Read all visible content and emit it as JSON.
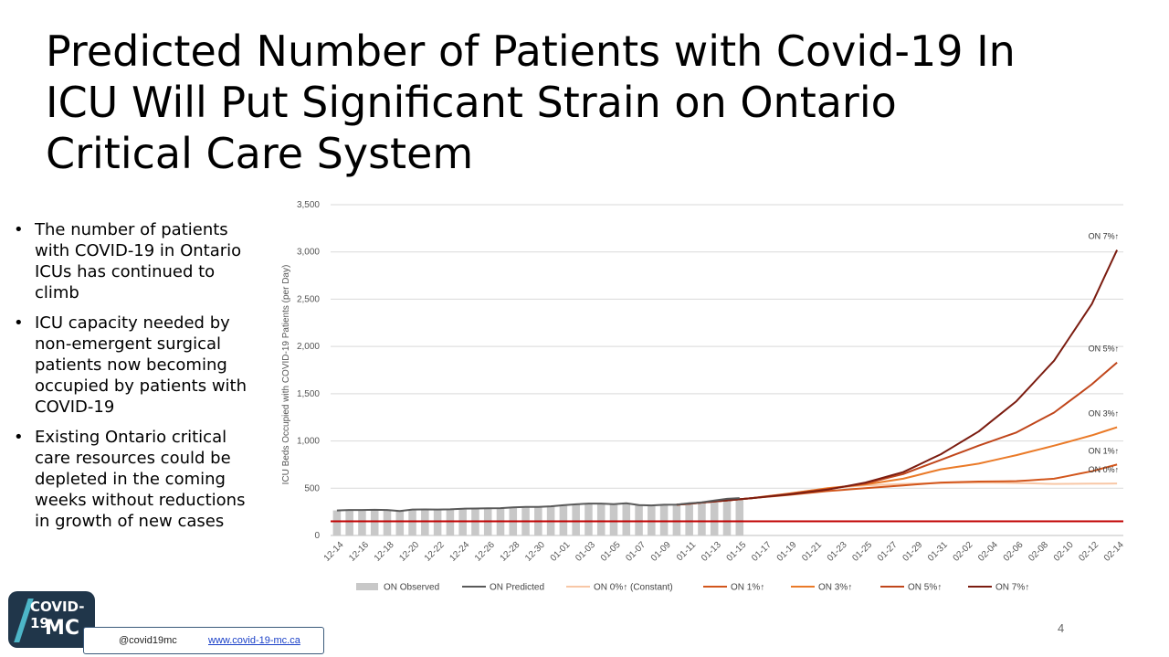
{
  "slide": {
    "title_lines": [
      "Predicted Number of Patients with Covid-19 In",
      "ICU Will Put Significant Strain on Ontario",
      "Critical Care System"
    ],
    "bullets": [
      "The number of patients with COVID-19 in Ontario ICUs has continued to climb",
      "ICU capacity needed by non-emergent surgical patients now becoming occupied by patients with COVID-19",
      "Existing Ontario critical care resources could be depleted in the coming weeks without reductions in growth of new cases"
    ],
    "page_number": "4"
  },
  "branding": {
    "logo_line1": "COVID-19",
    "logo_line2": "MC",
    "handle": "@covid19mc",
    "website": "www.covid-19-mc.ca"
  },
  "colors": {
    "observed": "#c8c8c8",
    "predicted": "#595959",
    "on0": "#f8c7a6",
    "on1": "#d2561c",
    "on3": "#ea7a28",
    "on5": "#c0461b",
    "on7": "#7b1c10",
    "capacity": "#c00000",
    "grid": "#d9d9d9"
  },
  "chart_data": {
    "type": "line",
    "title": "",
    "ylabel": "ICU Beds Occupied with COVID-19 Patients (per Day)",
    "xlabel": "",
    "ylim": [
      0,
      3500
    ],
    "yticks": [
      0,
      500,
      1000,
      1500,
      2000,
      2500,
      3000,
      3500
    ],
    "ytick_labels": [
      "0",
      "500",
      "1,000",
      "1,500",
      "2,000",
      "2,500",
      "3,000",
      "3,500"
    ],
    "x_tick_labels": [
      "12-14",
      "12-16",
      "12-18",
      "12-20",
      "12-22",
      "12-24",
      "12-26",
      "12-28",
      "12-30",
      "01-01",
      "01-03",
      "01-05",
      "01-07",
      "01-09",
      "01-11",
      "01-13",
      "01-15",
      "01-17",
      "01-19",
      "01-21",
      "01-23",
      "01-25",
      "01-27",
      "01-29",
      "01-31",
      "02-02",
      "02-04",
      "02-06",
      "02-08",
      "02-10",
      "02-12",
      "02-14"
    ],
    "n_days": 63,
    "grid": true,
    "legend_position": "bottom",
    "capacity_line": 150,
    "observed": {
      "name": "ON Observed",
      "values": [
        265,
        270,
        270,
        272,
        270,
        258,
        275,
        276,
        275,
        277,
        283,
        285,
        287,
        289,
        298,
        302,
        302,
        308,
        320,
        330,
        337,
        337,
        332,
        340,
        322,
        318,
        325,
        327,
        340,
        350,
        370,
        388,
        395
      ]
    },
    "predicted": {
      "name": "ON Predicted",
      "values": [
        265,
        270,
        270,
        272,
        270,
        258,
        275,
        276,
        275,
        277,
        283,
        285,
        287,
        289,
        298,
        302,
        302,
        308,
        320,
        330,
        337,
        337,
        332,
        340,
        322,
        318,
        325,
        327,
        340,
        350,
        370,
        388,
        395
      ]
    },
    "series": [
      {
        "name": "ON 0%↑ (Constant)",
        "label": "ON 0%↑",
        "points": [
          [
            27,
            325
          ],
          [
            30,
            360
          ],
          [
            33,
            395
          ],
          [
            36,
            445
          ],
          [
            39,
            500
          ],
          [
            42,
            530
          ],
          [
            45,
            545
          ],
          [
            48,
            555
          ],
          [
            51,
            560
          ],
          [
            54,
            555
          ],
          [
            57,
            545
          ],
          [
            60,
            548
          ],
          [
            62,
            550
          ]
        ]
      },
      {
        "name": "ON 1%↑",
        "label": "ON 1%↑",
        "points": [
          [
            27,
            325
          ],
          [
            30,
            360
          ],
          [
            33,
            395
          ],
          [
            36,
            430
          ],
          [
            39,
            470
          ],
          [
            42,
            500
          ],
          [
            45,
            530
          ],
          [
            48,
            560
          ],
          [
            51,
            570
          ],
          [
            54,
            575
          ],
          [
            57,
            600
          ],
          [
            60,
            680
          ],
          [
            62,
            750
          ]
        ]
      },
      {
        "name": "ON 3%↑",
        "label": "ON 3%↑",
        "points": [
          [
            27,
            325
          ],
          [
            30,
            360
          ],
          [
            33,
            395
          ],
          [
            36,
            445
          ],
          [
            39,
            500
          ],
          [
            42,
            540
          ],
          [
            45,
            600
          ],
          [
            48,
            700
          ],
          [
            51,
            760
          ],
          [
            54,
            850
          ],
          [
            57,
            950
          ],
          [
            60,
            1060
          ],
          [
            62,
            1145
          ]
        ]
      },
      {
        "name": "ON 5%↑",
        "label": "ON 5%↑",
        "points": [
          [
            27,
            325
          ],
          [
            30,
            360
          ],
          [
            33,
            395
          ],
          [
            36,
            440
          ],
          [
            39,
            490
          ],
          [
            42,
            550
          ],
          [
            45,
            650
          ],
          [
            48,
            800
          ],
          [
            51,
            950
          ],
          [
            54,
            1090
          ],
          [
            57,
            1300
          ],
          [
            60,
            1600
          ],
          [
            62,
            1830
          ]
        ]
      },
      {
        "name": "ON 7%↑",
        "label": "ON 7%↑",
        "points": [
          [
            27,
            325
          ],
          [
            30,
            360
          ],
          [
            33,
            395
          ],
          [
            36,
            435
          ],
          [
            39,
            485
          ],
          [
            42,
            560
          ],
          [
            45,
            670
          ],
          [
            48,
            860
          ],
          [
            51,
            1100
          ],
          [
            54,
            1420
          ],
          [
            57,
            1850
          ],
          [
            60,
            2450
          ],
          [
            62,
            3020
          ]
        ]
      }
    ]
  }
}
